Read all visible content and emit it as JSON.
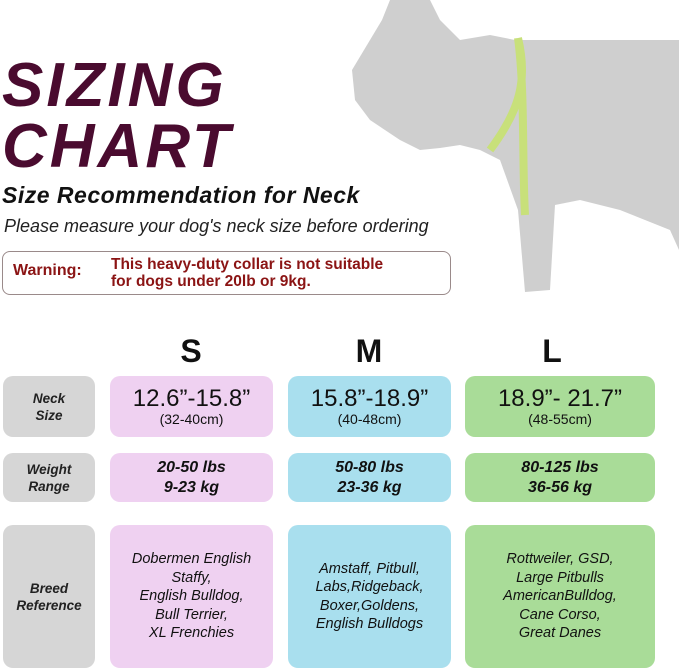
{
  "title_line1": "SIZING",
  "title_line2": "CHART",
  "subtitle": "Size Recommendation for Neck",
  "instruction": "Please measure your dog's neck size before ordering",
  "warning": {
    "label": "Warning:",
    "line1": "This heavy-duty collar is not suitable",
    "line2": "for dogs under 20lb or 9kg."
  },
  "colors": {
    "title": "#4a0b2f",
    "warning": "#8b1414",
    "small": "#efd1f1",
    "medium": "#a9dfee",
    "large": "#a9dc98",
    "label": "#d6d6d6"
  },
  "row_labels": {
    "neck": [
      "Neck",
      "Size"
    ],
    "weight": [
      "Weight",
      "Range"
    ],
    "breed": [
      "Breed",
      "Reference"
    ]
  },
  "sizes": [
    {
      "name": "S",
      "neck_in": "12.6”-15.8”",
      "neck_cm": "(32-40cm)",
      "weight_lbs": "20-50 lbs",
      "weight_kg": "9-23 kg",
      "breeds": [
        "Dobermen English",
        "Staffy,",
        "English Bulldog,",
        "Bull Terrier,",
        "XL Frenchies"
      ]
    },
    {
      "name": "M",
      "neck_in": "15.8”-18.9”",
      "neck_cm": "(40-48cm)",
      "weight_lbs": "50-80 lbs",
      "weight_kg": "23-36 kg",
      "breeds": [
        "Amstaff, Pitbull,",
        "Labs,Ridgeback,",
        "Boxer,Goldens,",
        "English Bulldogs"
      ]
    },
    {
      "name": "L",
      "neck_in": "18.9”- 21.7”",
      "neck_cm": "(48-55cm)",
      "weight_lbs": "80-125 lbs",
      "weight_kg": "36-56 kg",
      "breeds": [
        "Rottweiler, GSD,",
        "Large Pitbulls",
        "AmericanBulldog,",
        "Cane Corso,",
        "Great Danes"
      ]
    }
  ]
}
